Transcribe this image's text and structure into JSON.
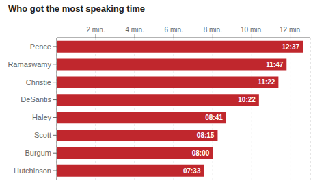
{
  "chart_data": {
    "type": "bar",
    "title": "Who got the most speaking time",
    "orientation": "horizontal",
    "categories": [
      "Pence",
      "Ramaswamy",
      "Christie",
      "DeSantis",
      "Haley",
      "Scott",
      "Burgum",
      "Hutchinson"
    ],
    "values": [
      757,
      707,
      682,
      622,
      521,
      495,
      480,
      453
    ],
    "value_labels": [
      "12:37",
      "11:47",
      "11:22",
      "10:22",
      "08:41",
      "08:15",
      "08:00",
      "07:33"
    ],
    "data_labels": true,
    "color": "#c0272d",
    "xlim": [
      0,
      780
    ],
    "xticks": [
      {
        "value": 120,
        "label": "2 min."
      },
      {
        "value": 240,
        "label": "4 min."
      },
      {
        "value": 360,
        "label": "6 min."
      },
      {
        "value": 480,
        "label": "8 min."
      },
      {
        "value": 600,
        "label": "10 min."
      },
      {
        "value": 720,
        "label": "12 min."
      }
    ],
    "grid": true
  }
}
